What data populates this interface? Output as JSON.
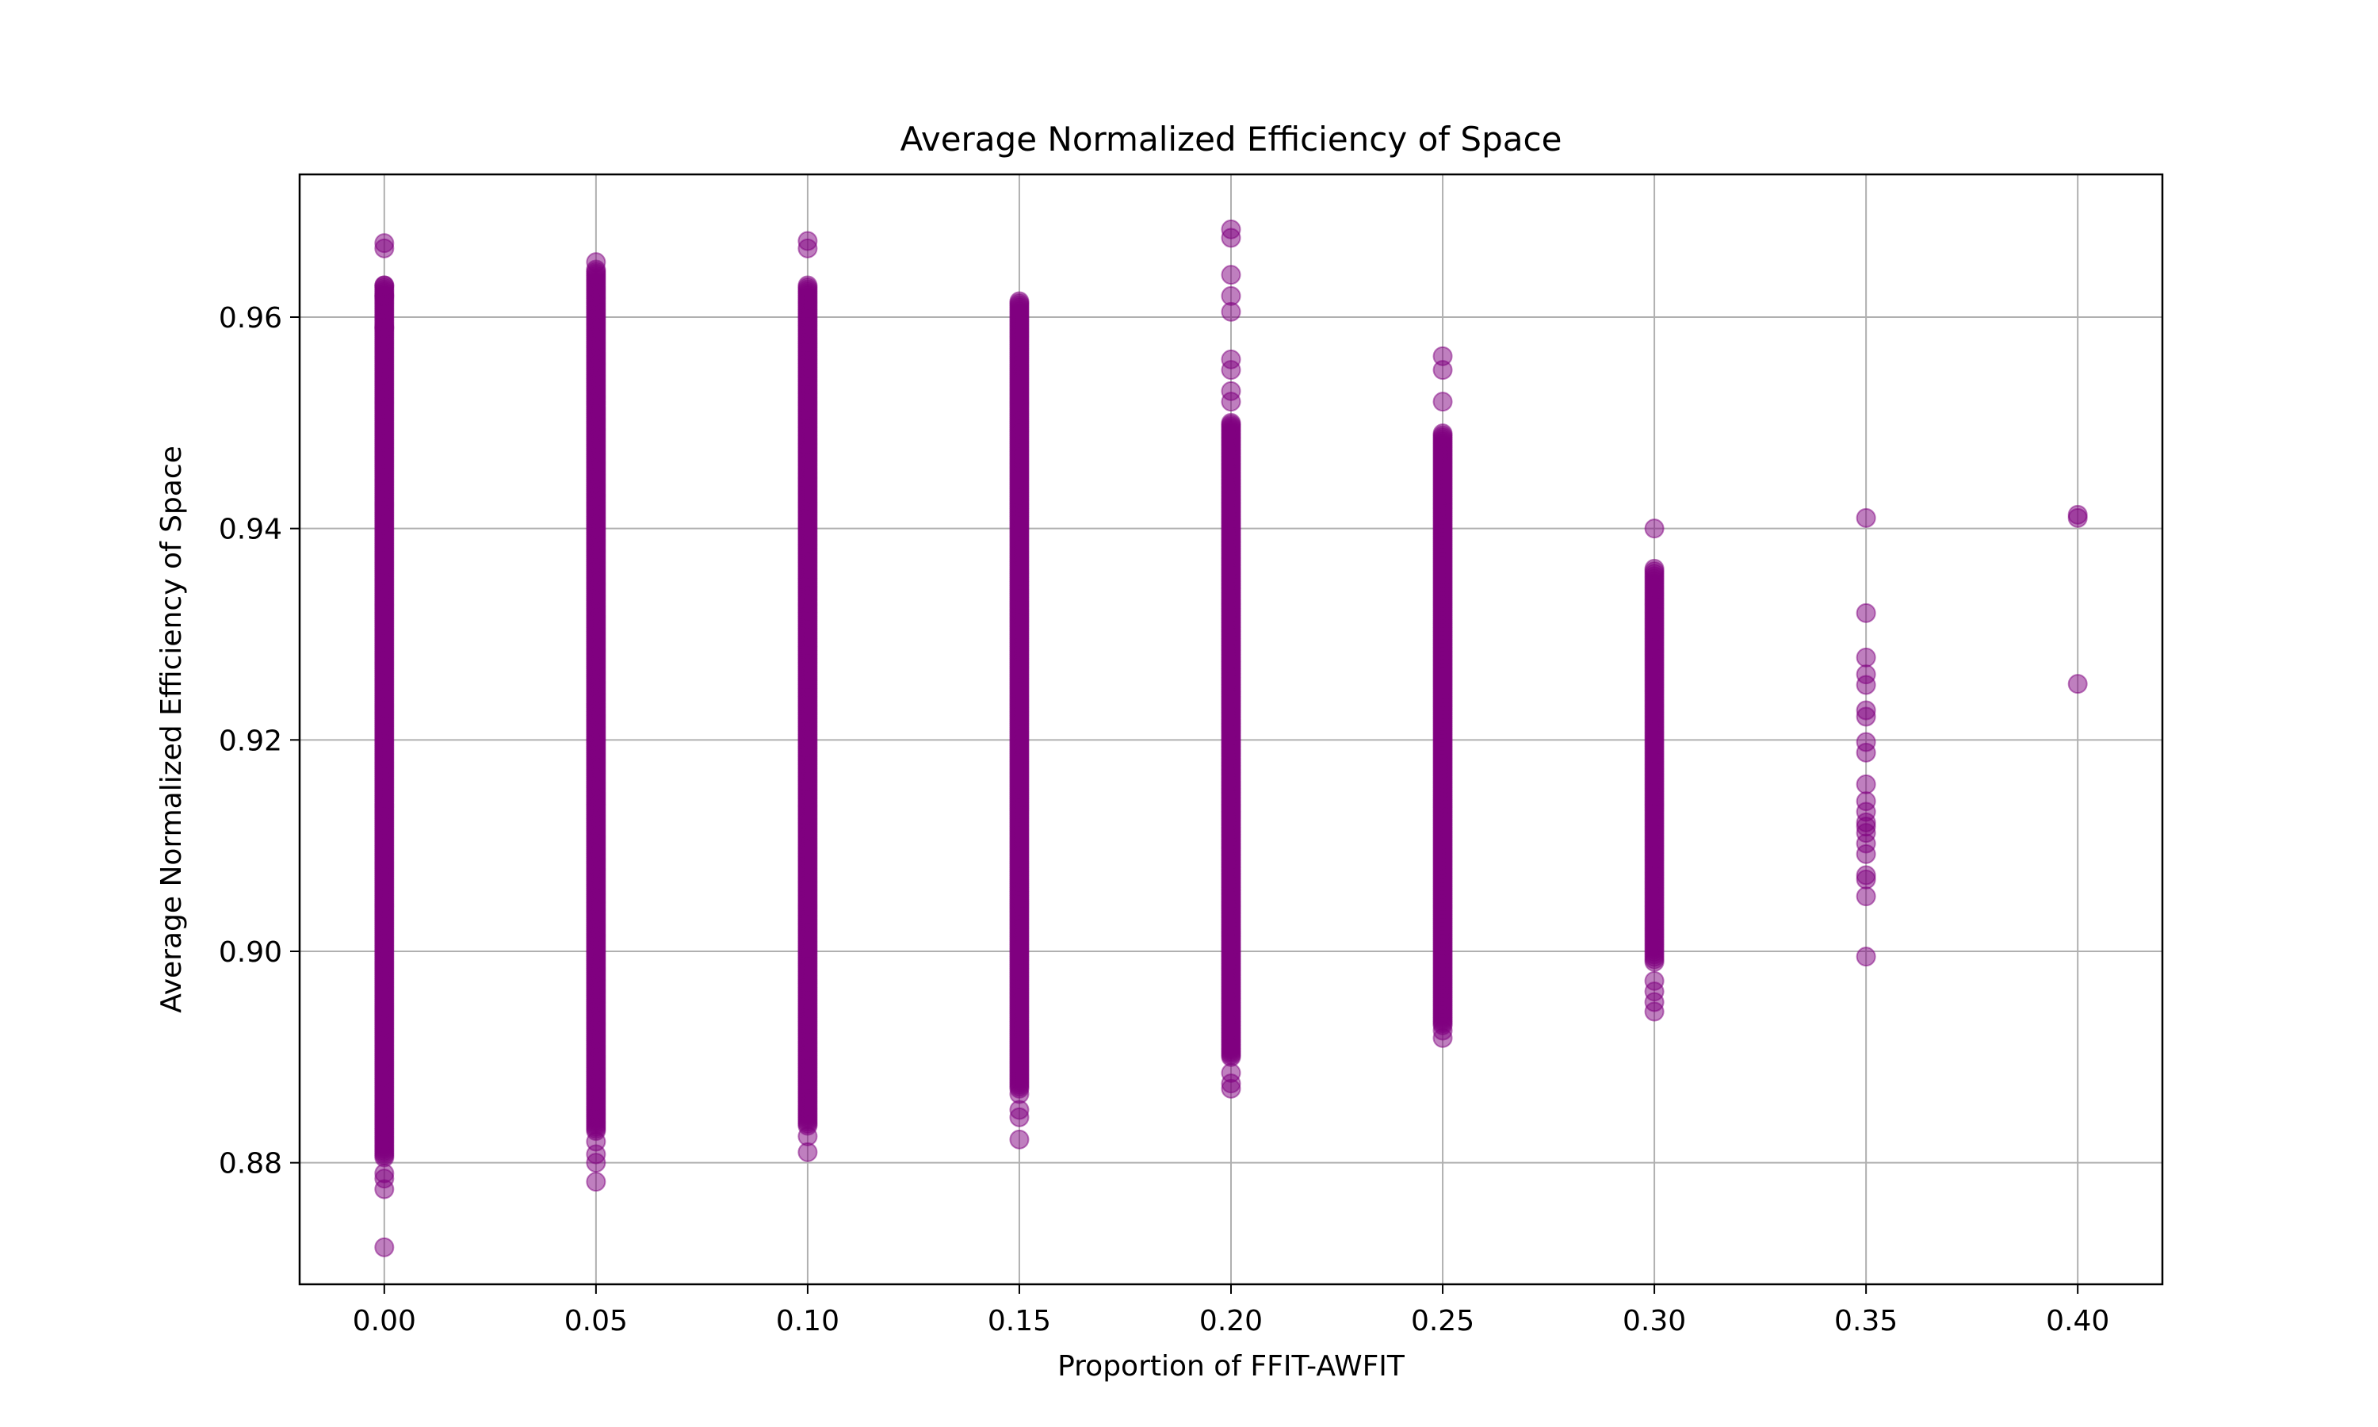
{
  "chart_data": {
    "type": "scatter",
    "title": "Average Normalized Efficiency of Space",
    "xlabel": "Proportion of FFIT-AWFIT",
    "ylabel": "Average Normalized Efficiency of Space",
    "xlim": [
      -0.02,
      0.42
    ],
    "ylim": [
      0.8685,
      0.9735
    ],
    "xticks": [
      0.0,
      0.05,
      0.1,
      0.15,
      0.2,
      0.25,
      0.3,
      0.35,
      0.4
    ],
    "xtick_labels": [
      "0.00",
      "0.05",
      "0.10",
      "0.15",
      "0.20",
      "0.25",
      "0.30",
      "0.35",
      "0.40"
    ],
    "yticks": [
      0.88,
      0.9,
      0.92,
      0.94,
      0.96
    ],
    "ytick_labels": [
      "0.88",
      "0.90",
      "0.92",
      "0.94",
      "0.96"
    ],
    "grid": true,
    "marker_color": "#800080",
    "marker_alpha": 0.5,
    "groups": [
      {
        "x": 0.0,
        "ymin": 0.8805,
        "ymax": 0.963,
        "count": 420,
        "outliers": [
          0.872,
          0.8775,
          0.8785,
          0.879,
          0.959,
          0.962,
          0.963,
          0.9665,
          0.967
        ]
      },
      {
        "x": 0.05,
        "ymin": 0.883,
        "ymax": 0.9645,
        "count": 420,
        "outliers": [
          0.8782,
          0.88,
          0.8808,
          0.882,
          0.9652
        ]
      },
      {
        "x": 0.1,
        "ymin": 0.8835,
        "ymax": 0.963,
        "count": 420,
        "outliers": [
          0.881,
          0.8825,
          0.9665,
          0.9672
        ]
      },
      {
        "x": 0.15,
        "ymin": 0.887,
        "ymax": 0.9615,
        "count": 400,
        "outliers": [
          0.8822,
          0.8843,
          0.885,
          0.8865
        ]
      },
      {
        "x": 0.2,
        "ymin": 0.89,
        "ymax": 0.95,
        "count": 360,
        "outliers": [
          0.887,
          0.8875,
          0.8885,
          0.952,
          0.953,
          0.955,
          0.956,
          0.9605,
          0.962,
          0.964,
          0.9675,
          0.9683
        ]
      },
      {
        "x": 0.25,
        "ymin": 0.893,
        "ymax": 0.949,
        "count": 300,
        "outliers": [
          0.8918,
          0.8925,
          0.952,
          0.955,
          0.9563
        ]
      },
      {
        "x": 0.3,
        "ymin": 0.899,
        "ymax": 0.9362,
        "count": 160,
        "outliers": [
          0.8943,
          0.8952,
          0.8962,
          0.8972,
          0.94
        ]
      },
      {
        "x": 0.35,
        "ymin": null,
        "ymax": null,
        "count": 0,
        "points": [
          0.8995,
          0.9052,
          0.9068,
          0.9072,
          0.9092,
          0.9102,
          0.9112,
          0.9118,
          0.9122,
          0.9132,
          0.9142,
          0.9158,
          0.9188,
          0.9198,
          0.9222,
          0.9228,
          0.9252,
          0.9262,
          0.9278,
          0.932,
          0.941
        ]
      },
      {
        "x": 0.4,
        "ymin": null,
        "ymax": null,
        "count": 0,
        "points": [
          0.9253,
          0.941,
          0.9413
        ]
      }
    ]
  }
}
